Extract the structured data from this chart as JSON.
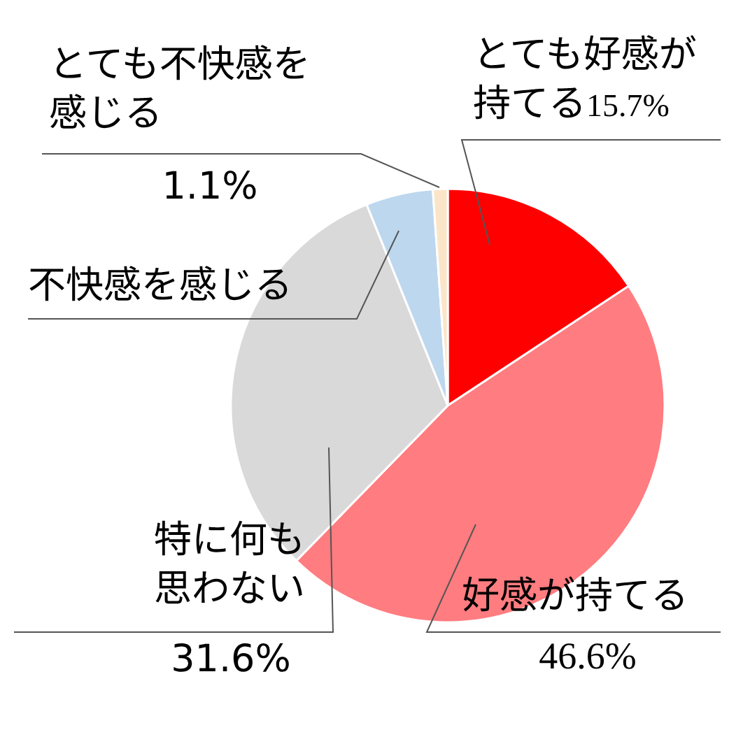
{
  "chart_data": {
    "type": "pie",
    "categories": [
      "とても好感が持てる",
      "好感が持てる",
      "特に何も思わない",
      "不快感を感じる",
      "とても不快感を感じる"
    ],
    "values": [
      15.7,
      46.6,
      31.6,
      5.0,
      1.1
    ],
    "colors": [
      "#ff0000",
      "#ff7c80",
      "#d9d9d9",
      "#bdd7ee",
      "#fbe5c8"
    ],
    "value_labels": [
      "15.7%",
      "46.6%",
      "31.6%",
      null,
      "1.1%"
    ]
  }
}
